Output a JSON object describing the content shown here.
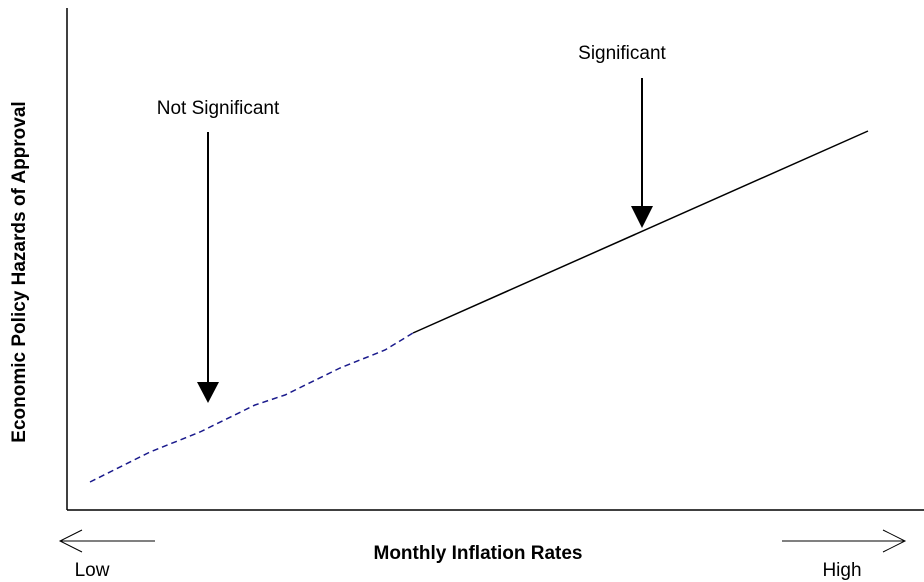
{
  "y_axis_label": "Economic Policy Hazards of Approval",
  "x_axis_label": "Monthly Inflation Rates",
  "x_low_label": "Low",
  "x_high_label": "High",
  "annotations": [
    "Not Significant",
    "Significant"
  ]
}
